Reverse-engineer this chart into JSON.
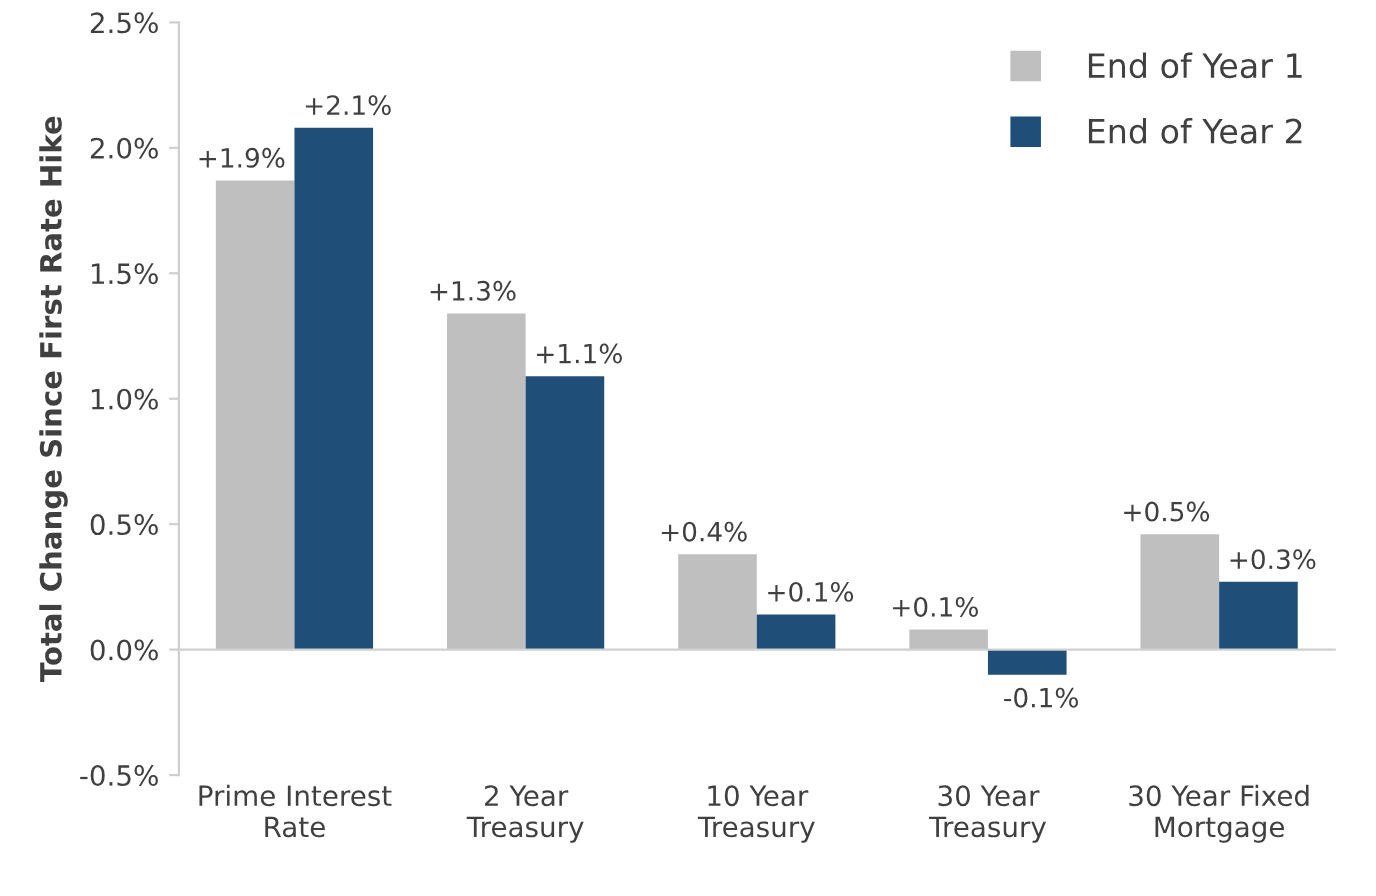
{
  "chart_data": {
    "type": "bar",
    "ylabel": "Total Change Since First Rate Hike",
    "categories": [
      "Prime Interest\nRate",
      "2 Year\nTreasury",
      "10 Year\nTreasury",
      "30 Year\nTreasury",
      "30 Year Fixed\nMortgage"
    ],
    "series": [
      {
        "name": "End of Year 1",
        "color": "#bfbfbf",
        "values": [
          1.87,
          1.34,
          0.38,
          0.08,
          0.46
        ],
        "value_labels": [
          "+1.9%",
          "+1.3%",
          "+0.4%",
          "+0.1%",
          "+0.5%"
        ]
      },
      {
        "name": "End of Year 2",
        "color": "#1f4e79",
        "values": [
          2.08,
          1.09,
          0.14,
          -0.1,
          0.27
        ],
        "value_labels": [
          "+2.1%",
          "+1.1%",
          "+0.1%",
          "-0.1%",
          "+0.3%"
        ]
      }
    ],
    "ylim": [
      -0.5,
      2.5
    ],
    "yticks": [
      {
        "value": -0.5,
        "label": "-0.5%"
      },
      {
        "value": 0,
        "label": "0.0%"
      },
      {
        "value": 0.5,
        "label": "0.5%"
      },
      {
        "value": 1,
        "label": "1.0%"
      },
      {
        "value": 1.5,
        "label": "1.5%"
      },
      {
        "value": 2,
        "label": "2.0%"
      },
      {
        "value": 2.5,
        "label": "2.5%"
      }
    ],
    "legend": "top right"
  }
}
